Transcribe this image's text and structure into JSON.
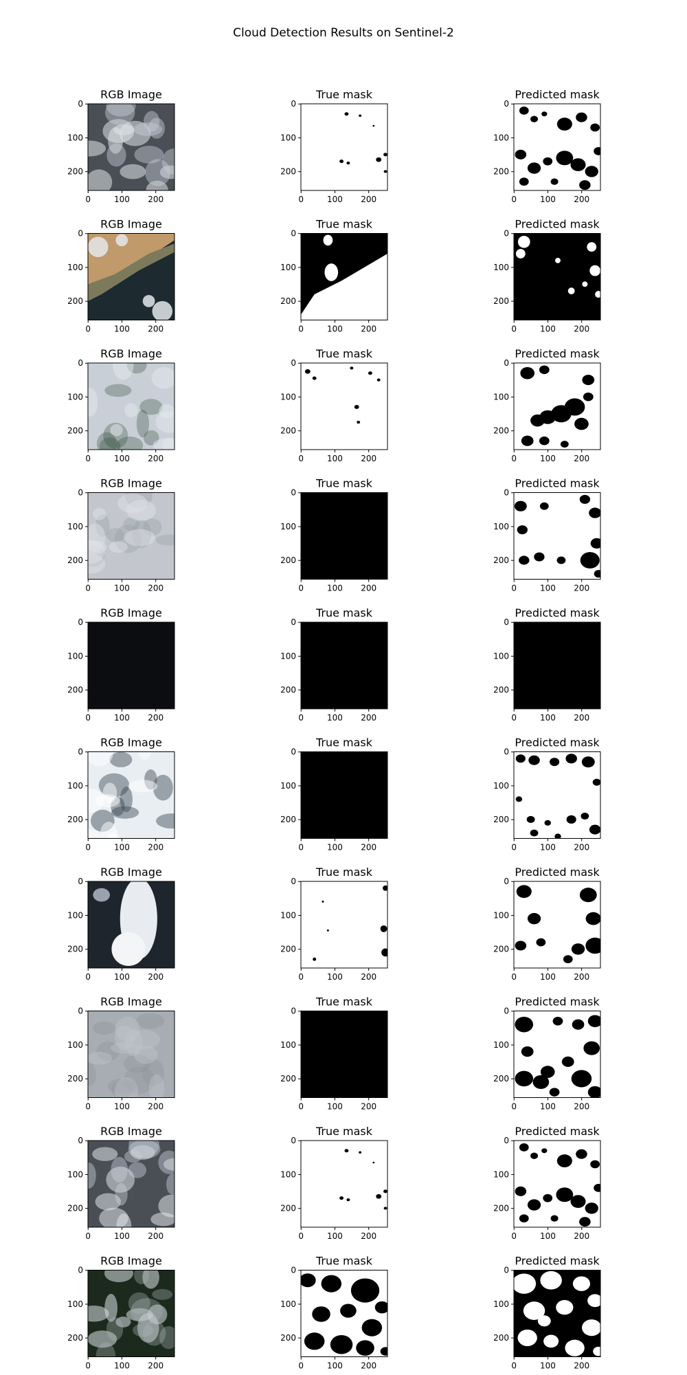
{
  "figure_title": "Cloud Detection Results on Sentinel-2",
  "column_titles": [
    "RGB Image",
    "True mask",
    "Predicted mask"
  ],
  "axes": {
    "x_ticks": [
      "0",
      "100",
      "200"
    ],
    "y_ticks": [
      "0",
      "100",
      "200"
    ]
  },
  "rows": [
    {
      "rgb": "mixed-clouds-dark-gaps",
      "true_mask": "mostly-white-specks",
      "predicted_mask": "white-with-many-black-blobs"
    },
    {
      "rgb": "coastline-land-water",
      "true_mask": "black-top-white-bottom-diagonal",
      "predicted_mask": "mostly-black-white-patches"
    },
    {
      "rgb": "clouds-over-green",
      "true_mask": "mostly-white-small-black",
      "predicted_mask": "white-with-black-band"
    },
    {
      "rgb": "grey-overcast",
      "true_mask": "all-black",
      "predicted_mask": "white-with-black-edges"
    },
    {
      "rgb": "black",
      "true_mask": "all-black",
      "predicted_mask": "all-black"
    },
    {
      "rgb": "bright-clouds",
      "true_mask": "all-black",
      "predicted_mask": "white-with-black-border-blobs"
    },
    {
      "rgb": "cloud-band-vertical",
      "true_mask": "mostly-white-right-edge-black",
      "predicted_mask": "white-left-black-right"
    },
    {
      "rgb": "grey-haze",
      "true_mask": "all-black",
      "predicted_mask": "white-with-black-blocks"
    },
    {
      "rgb": "mixed-clouds-dark-gaps",
      "true_mask": "mostly-white-specks",
      "predicted_mask": "white-with-many-black-blobs"
    },
    {
      "rgb": "dark-green-scattered-clouds",
      "true_mask": "white-black-blobs",
      "predicted_mask": "black-white-blobs"
    }
  ],
  "colors": {
    "background": "#ffffff",
    "mask_white": "#ffffff",
    "mask_black": "#000000",
    "axis": "#000000"
  }
}
